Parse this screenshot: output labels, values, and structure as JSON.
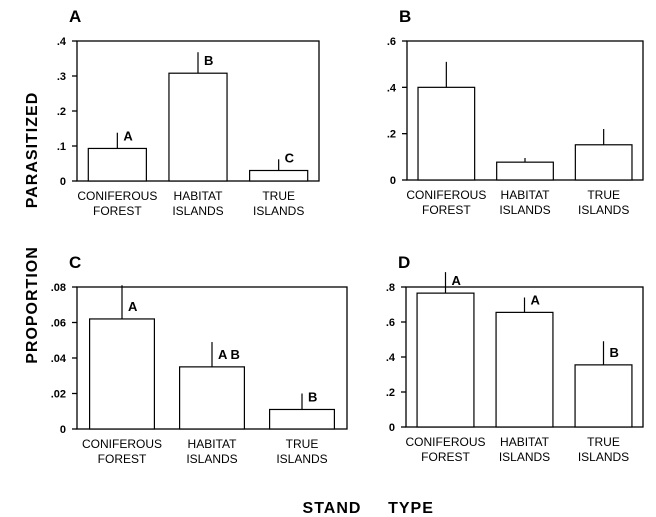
{
  "figure": {
    "ylabel_left": "PROPORTION",
    "ylabel_right": "PARASITIZED",
    "xlabel_left": "STAND",
    "xlabel_right": "TYPE"
  },
  "chart_data": [
    {
      "type": "bar",
      "panel": "A",
      "categories": [
        [
          "CONIFEROUS",
          "FOREST"
        ],
        [
          "HABITAT",
          "ISLANDS"
        ],
        [
          "TRUE",
          "ISLANDS"
        ]
      ],
      "values": [
        0.093,
        0.308,
        0.03
      ],
      "errors": [
        0.045,
        0.06,
        0.032
      ],
      "significance": [
        "A",
        "B",
        "C"
      ],
      "ylim": [
        0,
        0.4
      ],
      "yticks": [
        0,
        0.1,
        0.2,
        0.3,
        0.4
      ],
      "ytick_labels": [
        "0",
        ".1",
        ".2",
        ".3",
        ".4"
      ]
    },
    {
      "type": "bar",
      "panel": "B",
      "categories": [
        [
          "CONIFEROUS",
          "FOREST"
        ],
        [
          "HABITAT",
          "ISLANDS"
        ],
        [
          "TRUE",
          "ISLANDS"
        ]
      ],
      "values": [
        0.4,
        0.077,
        0.152
      ],
      "errors": [
        0.11,
        0.018,
        0.068
      ],
      "significance": [
        "",
        "",
        ""
      ],
      "ylim": [
        0,
        0.6
      ],
      "yticks": [
        0,
        0.2,
        0.4,
        0.6
      ],
      "ytick_labels": [
        "0",
        ".2",
        ".4",
        ".6"
      ]
    },
    {
      "type": "bar",
      "panel": "C",
      "categories": [
        [
          "CONIFEROUS",
          "FOREST"
        ],
        [
          "HABITAT",
          "ISLANDS"
        ],
        [
          "TRUE",
          "ISLANDS"
        ]
      ],
      "values": [
        0.062,
        0.035,
        0.011
      ],
      "errors": [
        0.019,
        0.014,
        0.009
      ],
      "significance": [
        "A",
        "A B",
        "B"
      ],
      "ylim": [
        0,
        0.08
      ],
      "yticks": [
        0,
        0.02,
        0.04,
        0.06,
        0.08
      ],
      "ytick_labels": [
        "0",
        ".02",
        ".04",
        ".06",
        ".08"
      ]
    },
    {
      "type": "bar",
      "panel": "D",
      "categories": [
        [
          "CONIFEROUS",
          "FOREST"
        ],
        [
          "HABITAT",
          "ISLANDS"
        ],
        [
          "TRUE",
          "ISLANDS"
        ]
      ],
      "values": [
        0.765,
        0.655,
        0.355
      ],
      "errors": [
        0.12,
        0.085,
        0.135
      ],
      "significance": [
        "A",
        "A",
        "B"
      ],
      "ylim": [
        0,
        0.8
      ],
      "yticks": [
        0,
        0.2,
        0.4,
        0.6,
        0.8
      ],
      "ytick_labels": [
        "0",
        ".2",
        ".4",
        ".6",
        ".8"
      ]
    }
  ]
}
